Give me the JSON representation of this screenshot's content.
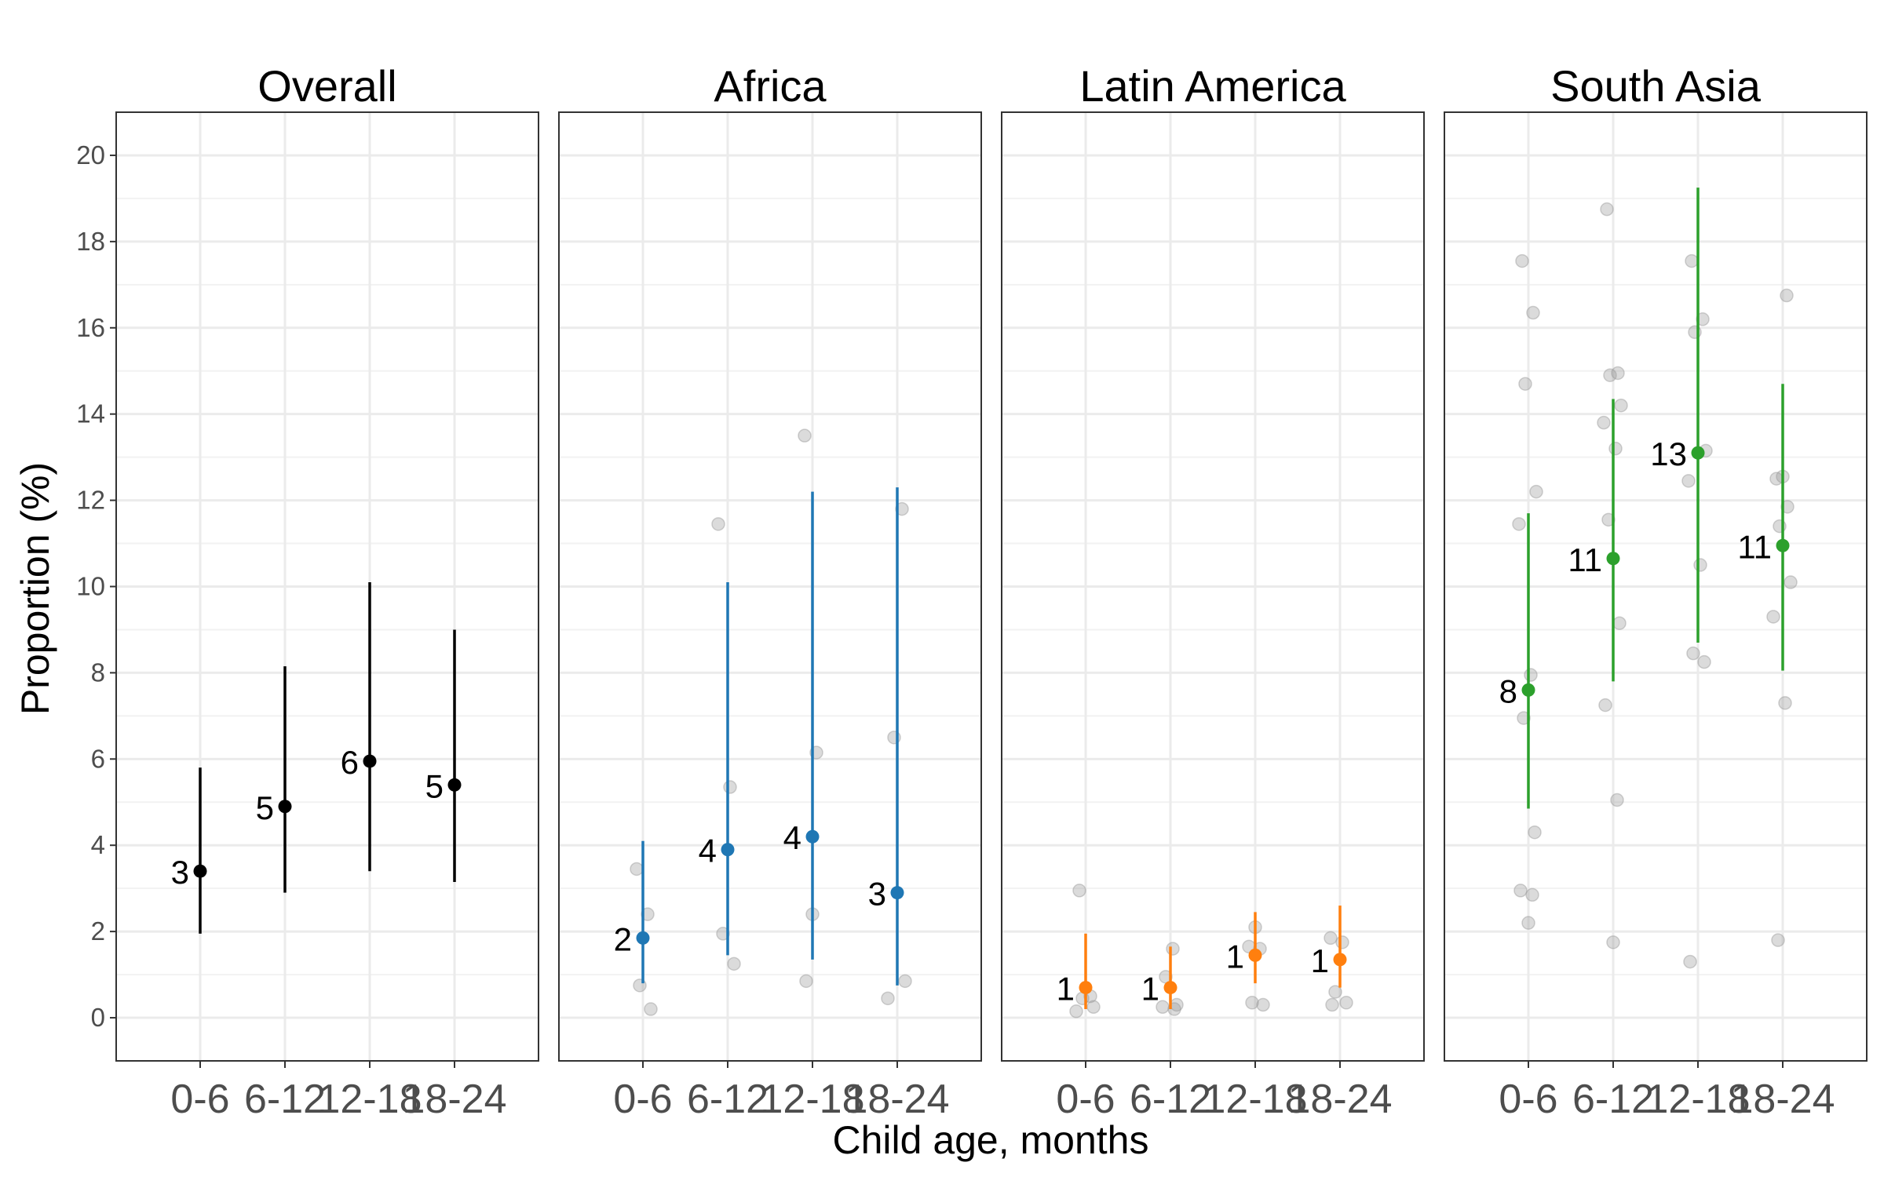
{
  "chart_data": {
    "type": "scatter",
    "xlabel": "Child age, months",
    "ylabel": "Proportion (%)",
    "ylim": [
      -1,
      21
    ],
    "y_ticks": [
      0,
      2,
      4,
      6,
      8,
      10,
      12,
      14,
      16,
      18,
      20
    ],
    "grid": true,
    "categories": [
      "0-6",
      "6-12",
      "12-18",
      "18-24"
    ],
    "panels": [
      {
        "title": "Overall",
        "color": "#000000",
        "estimates": [
          3.4,
          4.9,
          5.95,
          5.4
        ],
        "lower": [
          1.95,
          2.9,
          3.4,
          3.15
        ],
        "upper": [
          5.8,
          8.15,
          10.1,
          9.0
        ],
        "labels": [
          "3",
          "5",
          "6",
          "5"
        ],
        "points": []
      },
      {
        "title": "Africa",
        "color": "#1f77b4",
        "estimates": [
          1.85,
          3.9,
          4.2,
          2.9
        ],
        "lower": [
          0.8,
          1.45,
          1.35,
          0.75
        ],
        "upper": [
          4.1,
          10.1,
          12.2,
          12.3
        ],
        "labels": [
          "2",
          "4",
          "4",
          "3"
        ],
        "points": [
          {
            "x": "0-6",
            "y": 3.45
          },
          {
            "x": "0-6",
            "y": 2.4
          },
          {
            "x": "0-6",
            "y": 0.75
          },
          {
            "x": "0-6",
            "y": 0.2
          },
          {
            "x": "6-12",
            "y": 11.45
          },
          {
            "x": "6-12",
            "y": 5.35
          },
          {
            "x": "6-12",
            "y": 1.95
          },
          {
            "x": "6-12",
            "y": 1.25
          },
          {
            "x": "12-18",
            "y": 13.5
          },
          {
            "x": "12-18",
            "y": 6.15
          },
          {
            "x": "12-18",
            "y": 2.4
          },
          {
            "x": "12-18",
            "y": 0.85
          },
          {
            "x": "18-24",
            "y": 11.8
          },
          {
            "x": "18-24",
            "y": 6.5
          },
          {
            "x": "18-24",
            "y": 0.85
          },
          {
            "x": "18-24",
            "y": 0.45
          }
        ]
      },
      {
        "title": "Latin America",
        "color": "#ff7f0e",
        "estimates": [
          0.7,
          0.7,
          1.45,
          1.35
        ],
        "lower": [
          0.2,
          0.2,
          0.8,
          0.7
        ],
        "upper": [
          1.95,
          1.65,
          2.45,
          2.6
        ],
        "labels": [
          "1",
          "1",
          "1",
          "1"
        ],
        "points": [
          {
            "x": "0-6",
            "y": 2.95
          },
          {
            "x": "0-6",
            "y": 0.5
          },
          {
            "x": "0-6",
            "y": 0.45
          },
          {
            "x": "0-6",
            "y": 0.25
          },
          {
            "x": "0-6",
            "y": 0.15
          },
          {
            "x": "6-12",
            "y": 1.6
          },
          {
            "x": "6-12",
            "y": 0.95
          },
          {
            "x": "6-12",
            "y": 0.3
          },
          {
            "x": "6-12",
            "y": 0.25
          },
          {
            "x": "6-12",
            "y": 0.2
          },
          {
            "x": "12-18",
            "y": 2.1
          },
          {
            "x": "12-18",
            "y": 1.65
          },
          {
            "x": "12-18",
            "y": 1.6
          },
          {
            "x": "12-18",
            "y": 0.35
          },
          {
            "x": "12-18",
            "y": 0.3
          },
          {
            "x": "18-24",
            "y": 1.85
          },
          {
            "x": "18-24",
            "y": 1.75
          },
          {
            "x": "18-24",
            "y": 0.6
          },
          {
            "x": "18-24",
            "y": 0.35
          },
          {
            "x": "18-24",
            "y": 0.3
          }
        ]
      },
      {
        "title": "South Asia",
        "color": "#2ca02c",
        "estimates": [
          7.6,
          10.65,
          13.1,
          10.95
        ],
        "lower": [
          4.85,
          7.8,
          8.7,
          8.05
        ],
        "upper": [
          11.7,
          14.35,
          19.25,
          14.7
        ],
        "labels": [
          "8",
          "11",
          "13",
          "11"
        ],
        "points": [
          {
            "x": "0-6",
            "y": 17.55
          },
          {
            "x": "0-6",
            "y": 16.35
          },
          {
            "x": "0-6",
            "y": 14.7
          },
          {
            "x": "0-6",
            "y": 12.2
          },
          {
            "x": "0-6",
            "y": 11.45
          },
          {
            "x": "0-6",
            "y": 7.95
          },
          {
            "x": "0-6",
            "y": 6.95
          },
          {
            "x": "0-6",
            "y": 4.3
          },
          {
            "x": "0-6",
            "y": 2.95
          },
          {
            "x": "0-6",
            "y": 2.85
          },
          {
            "x": "0-6",
            "y": 2.2
          },
          {
            "x": "6-12",
            "y": 18.75
          },
          {
            "x": "6-12",
            "y": 14.95
          },
          {
            "x": "6-12",
            "y": 14.9
          },
          {
            "x": "6-12",
            "y": 14.2
          },
          {
            "x": "6-12",
            "y": 13.8
          },
          {
            "x": "6-12",
            "y": 13.2
          },
          {
            "x": "6-12",
            "y": 11.55
          },
          {
            "x": "6-12",
            "y": 9.15
          },
          {
            "x": "6-12",
            "y": 7.25
          },
          {
            "x": "6-12",
            "y": 5.05
          },
          {
            "x": "6-12",
            "y": 1.75
          },
          {
            "x": "12-18",
            "y": 17.55
          },
          {
            "x": "12-18",
            "y": 16.2
          },
          {
            "x": "12-18",
            "y": 15.9
          },
          {
            "x": "12-18",
            "y": 13.15
          },
          {
            "x": "12-18",
            "y": 12.45
          },
          {
            "x": "12-18",
            "y": 10.5
          },
          {
            "x": "12-18",
            "y": 8.45
          },
          {
            "x": "12-18",
            "y": 8.25
          },
          {
            "x": "12-18",
            "y": 1.3
          },
          {
            "x": "18-24",
            "y": 16.75
          },
          {
            "x": "18-24",
            "y": 12.55
          },
          {
            "x": "18-24",
            "y": 12.5
          },
          {
            "x": "18-24",
            "y": 11.85
          },
          {
            "x": "18-24",
            "y": 11.4
          },
          {
            "x": "18-24",
            "y": 10.1
          },
          {
            "x": "18-24",
            "y": 9.3
          },
          {
            "x": "18-24",
            "y": 7.3
          },
          {
            "x": "18-24",
            "y": 1.8
          }
        ]
      }
    ]
  }
}
